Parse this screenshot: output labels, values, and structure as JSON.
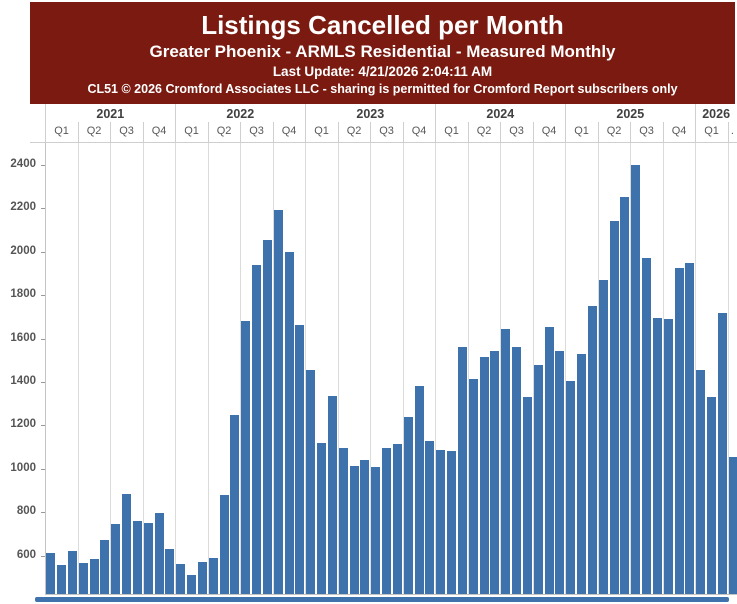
{
  "header": {
    "title": "Listings Cancelled per Month",
    "subtitle": "Greater Phoenix - ARMLS Residential - Measured Monthly",
    "last_update": "Last Update: 4/21/2026 2:04:11 AM",
    "copyright": "CL51 © 2026 Cromford Associates LLC - sharing is permitted for Cromford Report subscribers only",
    "background": "#7A1A10",
    "text_color": "#FFFFFF"
  },
  "chart_data": {
    "type": "bar",
    "title": "Listings Cancelled per Month",
    "subtitle": "Greater Phoenix - ARMLS Residential - Measured Monthly",
    "frequency": "monthly",
    "start_month": "Jan 2021",
    "end_month": "Apr 2026",
    "values": [
      610,
      555,
      620,
      565,
      585,
      670,
      745,
      885,
      760,
      750,
      795,
      630,
      560,
      510,
      570,
      590,
      880,
      1250,
      1680,
      1940,
      2055,
      2195,
      2000,
      1665,
      1455,
      1120,
      1335,
      1095,
      1015,
      1040,
      1010,
      1095,
      1115,
      1240,
      1380,
      1130,
      1085,
      1080,
      1560,
      1415,
      1515,
      1545,
      1645,
      1560,
      1330,
      1480,
      1655,
      1545,
      1405,
      1530,
      1750,
      1870,
      2140,
      2255,
      2400,
      1970,
      1695,
      1690,
      1925,
      1950,
      1455,
      1330,
      1720,
      1055
    ],
    "x_axis": {
      "years": [
        {
          "label": "2021",
          "quarters": [
            "Q1",
            "Q2",
            "Q3",
            "Q4"
          ]
        },
        {
          "label": "2022",
          "quarters": [
            "Q1",
            "Q2",
            "Q3",
            "Q4"
          ]
        },
        {
          "label": "2023",
          "quarters": [
            "Q1",
            "Q2",
            "Q3",
            "Q4"
          ]
        },
        {
          "label": "2024",
          "quarters": [
            "Q1",
            "Q2",
            "Q3",
            "Q4"
          ]
        },
        {
          "label": "2025",
          "quarters": [
            "Q1",
            "Q2",
            "Q3",
            "Q4"
          ]
        },
        {
          "label": "2026",
          "quarters": [
            "Q1",
            "."
          ]
        }
      ]
    },
    "y_axis": {
      "ticks": [
        600,
        800,
        1000,
        1200,
        1400,
        1600,
        1800,
        2000,
        2200,
        2400
      ],
      "visible_min": 420,
      "visible_max": 2500
    },
    "legend": "none",
    "grid": "vertical quarter gridlines only",
    "bar_color": "#3E72AD",
    "gridline_color": "#DBDBDB",
    "axis_line_color": "#C4C4C4",
    "band_line_color": "#CFCFCF"
  }
}
